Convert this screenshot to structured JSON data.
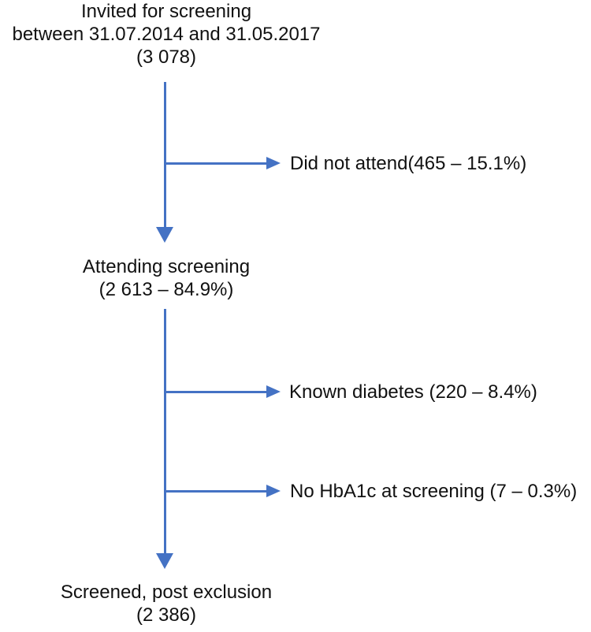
{
  "colors": {
    "arrow_blue": "#4472C4",
    "text": "#111111",
    "background": "#FFFFFF"
  },
  "flowchart": {
    "nodes": {
      "invited": {
        "label": "Invited for screening\nbetween 31.07.2014 and 31.05.2017\n(3 078)",
        "count": "3 078",
        "period_start": "31.07.2014",
        "period_end": "31.05.2017"
      },
      "attending": {
        "label": "Attending screening\n(2 613 – 84.9%)",
        "count": "2 613",
        "percent": "84.9%"
      },
      "screened": {
        "label": "Screened, post exclusion\n(2 386)",
        "count": "2 386"
      }
    },
    "exclusions": {
      "did_not_attend": {
        "label": "Did not attend(465 – 15.1%)",
        "count": "465",
        "percent": "15.1%"
      },
      "known_diabetes": {
        "label": "Known diabetes (220 – 8.4%)",
        "count": "220",
        "percent": "8.4%"
      },
      "no_hba1c": {
        "label": "No HbA1c at screening (7 – 0.3%)",
        "count": "7",
        "percent": "0.3%"
      }
    }
  }
}
